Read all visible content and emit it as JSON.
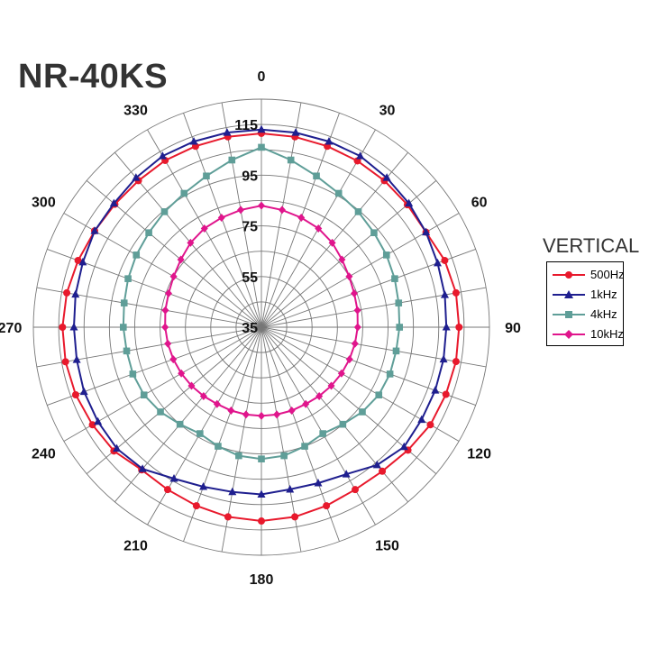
{
  "chart_data": {
    "type": "polar-line",
    "title": "NR-40KS",
    "legend_title": "VERTICAL",
    "legend_position": "right",
    "radial_range": [
      35,
      125
    ],
    "radial_ticks": [
      35,
      55,
      75,
      95,
      115
    ],
    "angle_ticks": [
      0,
      30,
      60,
      90,
      120,
      150,
      180,
      210,
      240,
      270,
      300,
      330
    ],
    "angle_step_deg": 10,
    "grid": true,
    "series": [
      {
        "name": "500Hz",
        "color": "#e8192c",
        "marker": "circle",
        "angles": [
          0,
          10,
          20,
          30,
          40,
          50,
          60,
          70,
          80,
          90,
          100,
          110,
          120,
          130,
          140,
          150,
          160,
          170,
          180,
          190,
          200,
          210,
          220,
          230,
          240,
          250,
          260,
          270,
          280,
          290,
          300,
          310,
          320,
          330,
          340,
          350
        ],
        "values": [
          111.5,
          111.3,
          111,
          110.8,
          110.5,
          110.2,
          110,
          112,
          113,
          113,
          113,
          112.5,
          112,
          110.5,
          109.2,
          109,
          110,
          111,
          111.5,
          111,
          110,
          109,
          108.5,
          111,
          112,
          113,
          113.5,
          113.5,
          113,
          112,
          111,
          110.5,
          110.5,
          111,
          111,
          111.3
        ]
      },
      {
        "name": "1kHz",
        "color": "#1f1f8f",
        "marker": "triangle",
        "angles": [
          0,
          10,
          20,
          30,
          40,
          50,
          60,
          70,
          80,
          90,
          100,
          110,
          120,
          130,
          140,
          150,
          160,
          170,
          180,
          190,
          200,
          210,
          220,
          230,
          240,
          250,
          260,
          270,
          280,
          290,
          300,
          310,
          320,
          330,
          340,
          350
        ],
        "values": [
          113,
          113,
          113,
          113,
          112,
          111,
          110,
          109,
          108.5,
          108,
          108,
          108,
          108,
          108.5,
          106,
          102,
          100.5,
          100,
          101,
          101,
          102,
          104,
          108,
          109.5,
          109.5,
          109.5,
          109,
          109,
          109.5,
          110,
          111,
          111,
          112,
          113,
          113,
          113
        ]
      },
      {
        "name": "4kHz",
        "color": "#5f9e98",
        "marker": "square",
        "angles": [
          0,
          10,
          20,
          30,
          40,
          50,
          60,
          70,
          80,
          90,
          100,
          110,
          120,
          130,
          140,
          150,
          160,
          170,
          180,
          190,
          200,
          210,
          220,
          230,
          240,
          250,
          260,
          270,
          280,
          290,
          300,
          310,
          320,
          330,
          340,
          350
        ],
        "values": [
          106,
          102,
          98.5,
          96,
          94.5,
          93,
          92,
          91,
          90,
          89.5,
          89,
          89,
          88.5,
          87,
          85,
          83.5,
          85,
          86.5,
          87,
          86.5,
          85,
          83.5,
          85,
          87,
          88.5,
          89,
          89,
          89.5,
          90,
          91,
          92,
          93,
          94.5,
          96,
          98.5,
          102
        ]
      },
      {
        "name": "10kHz",
        "color": "#e0158c",
        "marker": "diamond",
        "angles": [
          0,
          10,
          20,
          30,
          40,
          50,
          60,
          70,
          80,
          90,
          100,
          110,
          120,
          130,
          140,
          150,
          160,
          170,
          180,
          190,
          200,
          210,
          220,
          230,
          240,
          250,
          260,
          270,
          280,
          290,
          300,
          310,
          320,
          330,
          340,
          350
        ],
        "values": [
          83,
          82,
          81,
          80,
          78.5,
          76.5,
          75,
          74,
          73.5,
          73,
          72.5,
          72,
          71.5,
          71,
          70.5,
          70,
          70,
          70,
          70,
          70,
          70,
          70,
          70.5,
          71,
          71.5,
          72,
          72.5,
          73,
          73.5,
          74,
          75,
          76.5,
          78.5,
          80,
          81,
          82
        ]
      }
    ]
  }
}
